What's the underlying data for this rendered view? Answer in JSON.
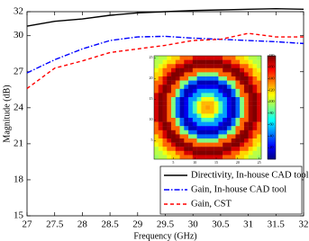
{
  "chart_data": [
    {
      "type": "line",
      "xlabel": "Frequency (GHz)",
      "ylabel": "Magnitude (dB)",
      "x": [
        27,
        27.5,
        28,
        28.5,
        29,
        29.5,
        30,
        30.5,
        31,
        31.5,
        32
      ],
      "series": [
        {
          "name": "Directivity, In-house CAD tool",
          "color": "#000000",
          "dash": "solid",
          "values": [
            30.8,
            31.2,
            31.4,
            31.7,
            31.9,
            32.0,
            32.1,
            32.15,
            32.2,
            32.25,
            32.2
          ]
        },
        {
          "name": "Gain, In-house CAD tool",
          "color": "#0000ff",
          "dash": "dashdot",
          "values": [
            26.9,
            28.0,
            28.9,
            29.6,
            29.9,
            29.95,
            29.8,
            29.7,
            29.6,
            29.5,
            29.35
          ]
        },
        {
          "name": "Gain, CST",
          "color": "#ff0000",
          "dash": "dashed",
          "values": [
            25.6,
            27.3,
            27.9,
            28.6,
            28.9,
            29.2,
            29.6,
            29.7,
            30.2,
            29.9,
            29.9
          ]
        }
      ],
      "xlim": [
        27,
        32
      ],
      "xticks": [
        27,
        27.5,
        28,
        28.5,
        29,
        29.5,
        30,
        30.5,
        31,
        31.5,
        32
      ],
      "ylim": [
        15,
        32
      ],
      "yticks": [
        15,
        18,
        21,
        24,
        27,
        30,
        32
      ],
      "legend": "lower right"
    },
    {
      "type": "heatmap",
      "colormap": "jet",
      "xlim": [
        0.5,
        25.5
      ],
      "xticks": [
        5,
        10,
        15,
        20,
        25
      ],
      "ylim": [
        0.5,
        25.5
      ],
      "yticks": [
        5,
        10,
        15,
        20,
        25
      ],
      "zlim": [
        0,
        180
      ],
      "zticks": [
        20,
        40,
        60,
        80,
        100,
        120,
        140,
        160,
        180
      ],
      "values": [
        [
          95,
          100,
          100,
          110,
          120,
          120,
          140,
          140,
          140,
          165,
          165,
          165,
          165,
          165,
          165,
          165,
          140,
          140,
          140,
          120,
          120,
          110,
          100,
          100,
          95
        ],
        [
          100,
          100,
          110,
          120,
          120,
          140,
          140,
          165,
          165,
          180,
          180,
          180,
          180,
          180,
          180,
          180,
          165,
          165,
          140,
          140,
          120,
          120,
          110,
          100,
          100
        ],
        [
          100,
          110,
          120,
          140,
          140,
          165,
          165,
          180,
          180,
          175,
          175,
          175,
          175,
          175,
          175,
          175,
          180,
          180,
          165,
          165,
          140,
          140,
          120,
          110,
          100
        ],
        [
          110,
          120,
          140,
          140,
          165,
          180,
          180,
          175,
          175,
          140,
          140,
          140,
          140,
          140,
          140,
          140,
          175,
          175,
          180,
          180,
          165,
          140,
          140,
          120,
          110
        ],
        [
          120,
          120,
          140,
          165,
          180,
          180,
          175,
          140,
          140,
          140,
          90,
          90,
          90,
          90,
          90,
          140,
          140,
          140,
          175,
          180,
          180,
          165,
          140,
          120,
          120
        ],
        [
          120,
          140,
          165,
          180,
          180,
          175,
          140,
          140,
          90,
          90,
          40,
          40,
          40,
          40,
          40,
          90,
          90,
          140,
          140,
          175,
          180,
          180,
          165,
          140,
          120
        ],
        [
          140,
          140,
          165,
          180,
          175,
          140,
          90,
          90,
          40,
          40,
          10,
          10,
          10,
          10,
          10,
          40,
          40,
          90,
          90,
          140,
          175,
          180,
          165,
          140,
          140
        ],
        [
          140,
          165,
          180,
          175,
          140,
          140,
          90,
          40,
          10,
          10,
          20,
          20,
          20,
          20,
          20,
          10,
          10,
          40,
          90,
          140,
          140,
          175,
          180,
          165,
          140
        ],
        [
          140,
          165,
          180,
          175,
          140,
          90,
          40,
          10,
          10,
          20,
          50,
          50,
          50,
          50,
          50,
          20,
          10,
          10,
          40,
          90,
          140,
          175,
          180,
          165,
          140
        ],
        [
          165,
          180,
          175,
          140,
          140,
          90,
          40,
          10,
          20,
          50,
          50,
          80,
          80,
          80,
          50,
          50,
          20,
          10,
          40,
          90,
          140,
          140,
          175,
          180,
          165
        ],
        [
          165,
          180,
          175,
          140,
          90,
          40,
          10,
          20,
          50,
          50,
          80,
          110,
          110,
          110,
          80,
          50,
          50,
          20,
          10,
          40,
          90,
          140,
          175,
          180,
          165
        ],
        [
          165,
          180,
          175,
          140,
          90,
          40,
          10,
          20,
          50,
          80,
          110,
          125,
          125,
          125,
          110,
          80,
          50,
          20,
          10,
          40,
          90,
          140,
          175,
          180,
          165
        ],
        [
          165,
          180,
          175,
          140,
          90,
          40,
          10,
          20,
          50,
          80,
          110,
          125,
          130,
          125,
          110,
          80,
          50,
          20,
          10,
          40,
          90,
          140,
          175,
          180,
          165
        ],
        [
          165,
          180,
          175,
          140,
          90,
          40,
          10,
          20,
          50,
          80,
          110,
          125,
          125,
          125,
          110,
          80,
          50,
          20,
          10,
          40,
          90,
          140,
          175,
          180,
          165
        ],
        [
          165,
          180,
          175,
          140,
          90,
          40,
          10,
          20,
          50,
          50,
          80,
          110,
          110,
          110,
          80,
          50,
          50,
          20,
          10,
          40,
          90,
          140,
          175,
          180,
          165
        ],
        [
          165,
          180,
          175,
          140,
          140,
          90,
          40,
          10,
          20,
          50,
          50,
          80,
          80,
          80,
          50,
          50,
          20,
          10,
          40,
          90,
          140,
          140,
          175,
          180,
          165
        ],
        [
          140,
          165,
          180,
          175,
          140,
          90,
          40,
          10,
          10,
          20,
          50,
          50,
          50,
          50,
          50,
          20,
          10,
          10,
          40,
          90,
          140,
          175,
          180,
          165,
          140
        ],
        [
          140,
          165,
          180,
          175,
          140,
          140,
          90,
          40,
          10,
          10,
          20,
          20,
          20,
          20,
          20,
          10,
          10,
          40,
          90,
          140,
          140,
          175,
          180,
          165,
          140
        ],
        [
          140,
          140,
          165,
          180,
          175,
          140,
          90,
          90,
          40,
          40,
          10,
          10,
          10,
          10,
          10,
          40,
          40,
          90,
          90,
          140,
          175,
          180,
          165,
          140,
          140
        ],
        [
          120,
          140,
          165,
          180,
          180,
          175,
          140,
          140,
          90,
          90,
          40,
          40,
          40,
          40,
          40,
          90,
          90,
          140,
          140,
          175,
          180,
          180,
          165,
          140,
          120
        ],
        [
          120,
          120,
          140,
          165,
          180,
          180,
          175,
          140,
          140,
          140,
          90,
          90,
          90,
          90,
          90,
          140,
          140,
          140,
          175,
          180,
          180,
          165,
          140,
          120,
          120
        ],
        [
          110,
          120,
          140,
          140,
          165,
          180,
          180,
          175,
          175,
          140,
          140,
          140,
          140,
          140,
          140,
          140,
          175,
          175,
          180,
          180,
          165,
          140,
          140,
          120,
          110
        ],
        [
          100,
          110,
          120,
          140,
          140,
          165,
          165,
          180,
          180,
          175,
          175,
          175,
          175,
          175,
          175,
          175,
          180,
          180,
          165,
          165,
          140,
          140,
          120,
          110,
          100
        ],
        [
          100,
          100,
          110,
          120,
          120,
          140,
          140,
          165,
          165,
          180,
          180,
          180,
          180,
          180,
          180,
          180,
          165,
          165,
          140,
          140,
          120,
          120,
          110,
          100,
          100
        ],
        [
          95,
          100,
          100,
          110,
          120,
          120,
          140,
          140,
          140,
          165,
          165,
          165,
          165,
          165,
          165,
          165,
          140,
          140,
          140,
          120,
          120,
          110,
          100,
          100,
          95
        ]
      ]
    }
  ]
}
